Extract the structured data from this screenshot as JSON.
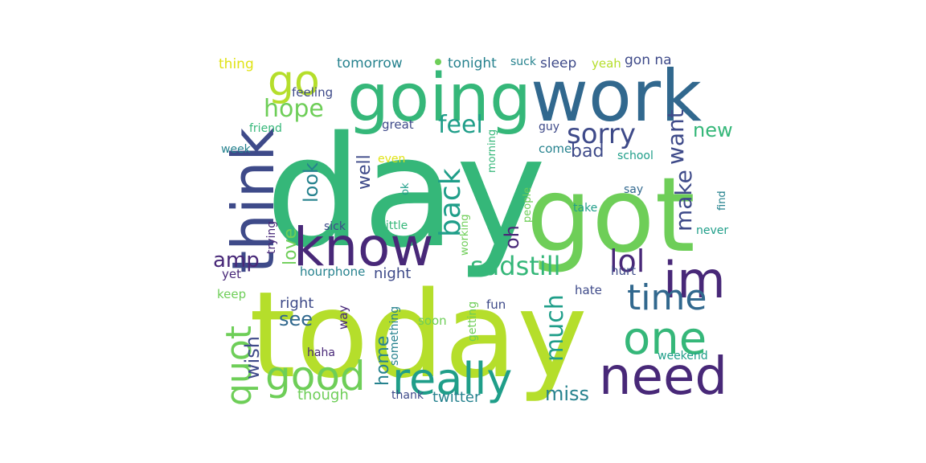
{
  "colors": {
    "dark_purple": "#482878",
    "blue": "#3e4a89",
    "steel_blue": "#31688e",
    "teal": "#26828e",
    "teal_green": "#1f9e89",
    "green": "#35b779",
    "light_green": "#6ece58",
    "lime": "#b5de2b",
    "yellow": "#e0e316"
  },
  "words": [
    {
      "text": "day",
      "color": "green"
    },
    {
      "text": "today",
      "color": "lime"
    },
    {
      "text": "got",
      "color": "light_green"
    },
    {
      "text": "work",
      "color": "steel_blue"
    },
    {
      "text": "going",
      "color": "green"
    },
    {
      "text": "think",
      "color": "blue"
    },
    {
      "text": "know",
      "color": "dark_purple"
    },
    {
      "text": "need",
      "color": "dark_purple"
    },
    {
      "text": "one",
      "color": "green"
    },
    {
      "text": "really",
      "color": "teal_green"
    },
    {
      "text": "im",
      "color": "dark_purple"
    },
    {
      "text": "good",
      "color": "light_green"
    },
    {
      "text": "time",
      "color": "steel_blue"
    },
    {
      "text": "quot",
      "color": "light_green"
    },
    {
      "text": "go",
      "color": "lime"
    },
    {
      "text": "sorry",
      "color": "blue"
    },
    {
      "text": "back",
      "color": "teal_green"
    },
    {
      "text": "lol",
      "color": "dark_purple"
    },
    {
      "text": "sadstill",
      "color": "green"
    },
    {
      "text": "much",
      "color": "teal_green"
    },
    {
      "text": "want",
      "color": "blue"
    },
    {
      "text": "make",
      "color": "blue"
    },
    {
      "text": "feel",
      "color": "teal_green"
    },
    {
      "text": "hope",
      "color": "light_green"
    },
    {
      "text": "amp",
      "color": "dark_purple"
    },
    {
      "text": "home",
      "color": "teal"
    },
    {
      "text": "well",
      "color": "blue"
    },
    {
      "text": "look",
      "color": "teal"
    },
    {
      "text": "miss",
      "color": "teal"
    },
    {
      "text": "oh",
      "color": "dark_purple"
    },
    {
      "text": "see",
      "color": "steel_blue"
    },
    {
      "text": "wish",
      "color": "blue"
    },
    {
      "text": "new",
      "color": "green"
    },
    {
      "text": "bad",
      "color": "blue"
    },
    {
      "text": "love",
      "color": "light_green"
    },
    {
      "text": "twitter",
      "color": "teal"
    },
    {
      "text": "night",
      "color": "blue"
    },
    {
      "text": "right",
      "color": "blue"
    },
    {
      "text": "though",
      "color": "light_green"
    },
    {
      "text": "thing",
      "color": "yellow"
    },
    {
      "text": "tomorrow",
      "color": "teal"
    },
    {
      "text": "tonight",
      "color": "teal"
    },
    {
      "text": "suck",
      "color": "teal"
    },
    {
      "text": "sleep",
      "color": "blue"
    },
    {
      "text": "yeah",
      "color": "lime"
    },
    {
      "text": "gon na",
      "color": "blue"
    },
    {
      "text": "feeling",
      "color": "blue"
    },
    {
      "text": "friend",
      "color": "green"
    },
    {
      "text": "great",
      "color": "blue"
    },
    {
      "text": "guy",
      "color": "blue"
    },
    {
      "text": "week",
      "color": "teal"
    },
    {
      "text": "come",
      "color": "teal"
    },
    {
      "text": "school",
      "color": "teal_green"
    },
    {
      "text": "even",
      "color": "yellow"
    },
    {
      "text": "morning",
      "color": "green"
    },
    {
      "text": "say",
      "color": "steel_blue"
    },
    {
      "text": "ok",
      "color": "teal_green"
    },
    {
      "text": "people",
      "color": "light_green"
    },
    {
      "text": "find",
      "color": "teal"
    },
    {
      "text": "take",
      "color": "teal_green"
    },
    {
      "text": "sick",
      "color": "blue"
    },
    {
      "text": "little",
      "color": "green"
    },
    {
      "text": "trying",
      "color": "dark_purple"
    },
    {
      "text": "working",
      "color": "light_green"
    },
    {
      "text": "never",
      "color": "teal_green"
    },
    {
      "text": "hourphone",
      "color": "teal"
    },
    {
      "text": "hurt",
      "color": "blue"
    },
    {
      "text": "yet",
      "color": "dark_purple"
    },
    {
      "text": "keep",
      "color": "light_green"
    },
    {
      "text": "hate",
      "color": "blue"
    },
    {
      "text": "way",
      "color": "dark_purple"
    },
    {
      "text": "something",
      "color": "teal"
    },
    {
      "text": "soon",
      "color": "light_green"
    },
    {
      "text": "getting",
      "color": "light_green"
    },
    {
      "text": "fun",
      "color": "blue"
    },
    {
      "text": "haha",
      "color": "dark_purple"
    },
    {
      "text": "weekend",
      "color": "teal_green"
    },
    {
      "text": "thank",
      "color": "blue"
    }
  ]
}
